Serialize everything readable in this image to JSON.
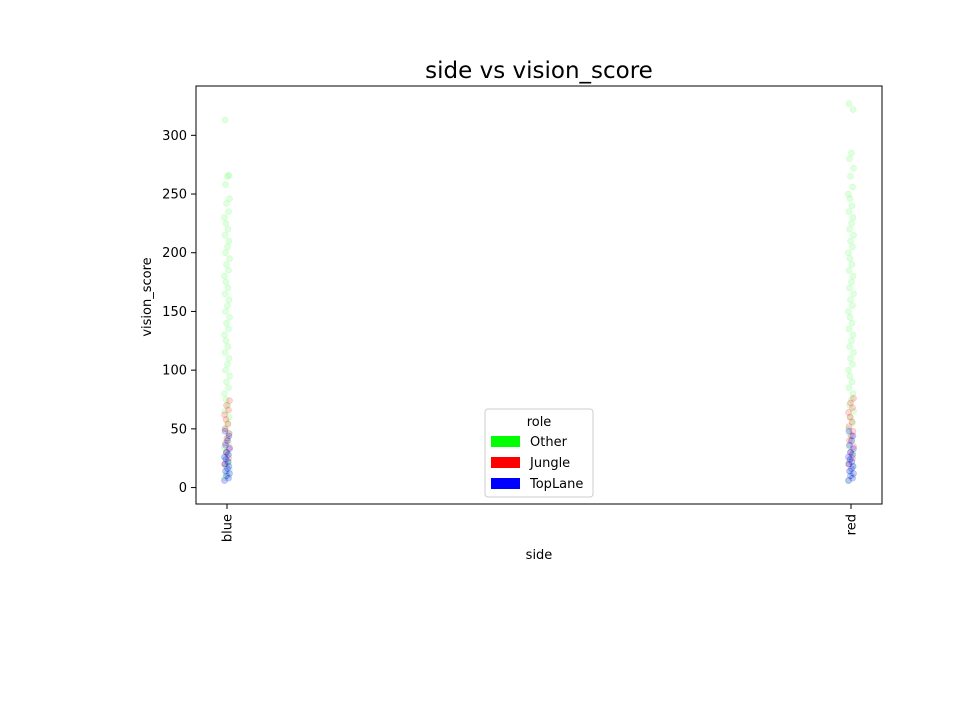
{
  "chart_data": {
    "type": "scatter",
    "title": "side vs vision_score",
    "xlabel": "side",
    "ylabel": "vision_score",
    "categories": [
      "blue",
      "red"
    ],
    "ylim": [
      -14,
      342
    ],
    "yticks": [
      0,
      50,
      100,
      150,
      200,
      250,
      300
    ],
    "grid": false,
    "legend": {
      "title": "role",
      "placement": "lower-center",
      "entries": [
        {
          "name": "Other",
          "color": "#00ff00"
        },
        {
          "name": "Jungle",
          "color": "#ff0000"
        },
        {
          "name": "TopLane",
          "color": "#0000ff"
        }
      ]
    },
    "series": [
      {
        "name": "Other",
        "color": "#00ff00",
        "points": {
          "blue": [
            8,
            10,
            12,
            15,
            18,
            20,
            22,
            25,
            28,
            30,
            34,
            38,
            42,
            46,
            50,
            55,
            60,
            65,
            70,
            75,
            80,
            85,
            90,
            95,
            100,
            105,
            110,
            115,
            120,
            125,
            130,
            135,
            140,
            145,
            150,
            155,
            160,
            165,
            170,
            175,
            180,
            185,
            190,
            195,
            200,
            205,
            210,
            215,
            220,
            225,
            230,
            235,
            242,
            246,
            258,
            265,
            266,
            313
          ],
          "red": [
            6,
            10,
            14,
            18,
            22,
            26,
            30,
            35,
            40,
            45,
            50,
            55,
            60,
            65,
            70,
            75,
            80,
            85,
            90,
            95,
            100,
            105,
            110,
            115,
            120,
            125,
            130,
            135,
            140,
            145,
            150,
            155,
            160,
            165,
            170,
            175,
            180,
            185,
            190,
            195,
            200,
            205,
            210,
            215,
            220,
            225,
            230,
            235,
            240,
            246,
            250,
            256,
            265,
            272,
            280,
            285,
            322,
            327
          ]
        }
      },
      {
        "name": "Jungle",
        "color": "#ff0000",
        "points": {
          "blue": [
            20,
            25,
            30,
            34,
            38,
            42,
            46,
            50,
            54,
            58,
            62,
            66,
            70,
            74
          ],
          "red": [
            20,
            25,
            30,
            35,
            40,
            44,
            48,
            52,
            56,
            60,
            64,
            68,
            72,
            76
          ]
        }
      },
      {
        "name": "TopLane",
        "color": "#0000ff",
        "points": {
          "blue": [
            6,
            8,
            10,
            12,
            14,
            16,
            18,
            20,
            22,
            24,
            26,
            28,
            30,
            33,
            36,
            40,
            44,
            48
          ],
          "red": [
            6,
            8,
            10,
            12,
            14,
            16,
            18,
            20,
            22,
            24,
            26,
            28,
            30,
            33,
            36,
            40,
            44,
            48
          ]
        }
      }
    ]
  }
}
